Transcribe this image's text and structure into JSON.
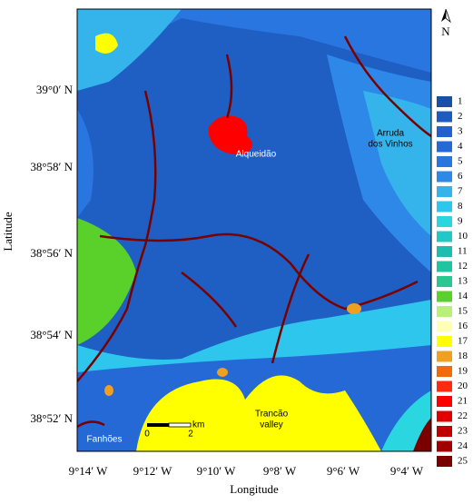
{
  "map": {
    "north_label": "N",
    "x_axis_title": "Longitude",
    "y_axis_title": "Latitude",
    "xticks": [
      "9°14′ W",
      "9°12′ W",
      "9°10′ W",
      "9°8′ W",
      "9°6′ W",
      "9°4′ W"
    ],
    "yticks": [
      "39°0′ N",
      "38°58′ N",
      "38°56′ N",
      "38°54′ N",
      "38°52′ N"
    ],
    "places": [
      {
        "lines": [
          "Alqueidão"
        ]
      },
      {
        "lines": [
          "Arruda",
          "dos Vinhos"
        ]
      },
      {
        "lines": [
          "Trancão",
          "valley"
        ]
      },
      {
        "lines": [
          "Fanhões"
        ]
      }
    ],
    "scale_bar": {
      "start": "0",
      "end": "2",
      "unit": "km"
    },
    "legend": [
      {
        "label": "1",
        "color": "#1a4fa8"
      },
      {
        "label": "2",
        "color": "#1f5bbf"
      },
      {
        "label": "3",
        "color": "#2262cc"
      },
      {
        "label": "4",
        "color": "#2469d6"
      },
      {
        "label": "5",
        "color": "#2a76e0"
      },
      {
        "label": "6",
        "color": "#2e88e8"
      },
      {
        "label": "7",
        "color": "#35b4ec"
      },
      {
        "label": "8",
        "color": "#2ec6ec"
      },
      {
        "label": "9",
        "color": "#2ad6e0"
      },
      {
        "label": "10",
        "color": "#22c8c8"
      },
      {
        "label": "11",
        "color": "#1fbcb0"
      },
      {
        "label": "12",
        "color": "#22c4a0"
      },
      {
        "label": "13",
        "color": "#2ac890"
      },
      {
        "label": "14",
        "color": "#5ad02a"
      },
      {
        "label": "15",
        "color": "#b8f07a"
      },
      {
        "label": "16",
        "color": "#ffffb8"
      },
      {
        "label": "17",
        "color": "#ffff00"
      },
      {
        "label": "18",
        "color": "#f0a020"
      },
      {
        "label": "19",
        "color": "#f06a10"
      },
      {
        "label": "20",
        "color": "#ff2a10"
      },
      {
        "label": "21",
        "color": "#ff0000"
      },
      {
        "label": "22",
        "color": "#e00000"
      },
      {
        "label": "23",
        "color": "#c00000"
      },
      {
        "label": "24",
        "color": "#a00000"
      },
      {
        "label": "25",
        "color": "#7a0000"
      }
    ]
  }
}
